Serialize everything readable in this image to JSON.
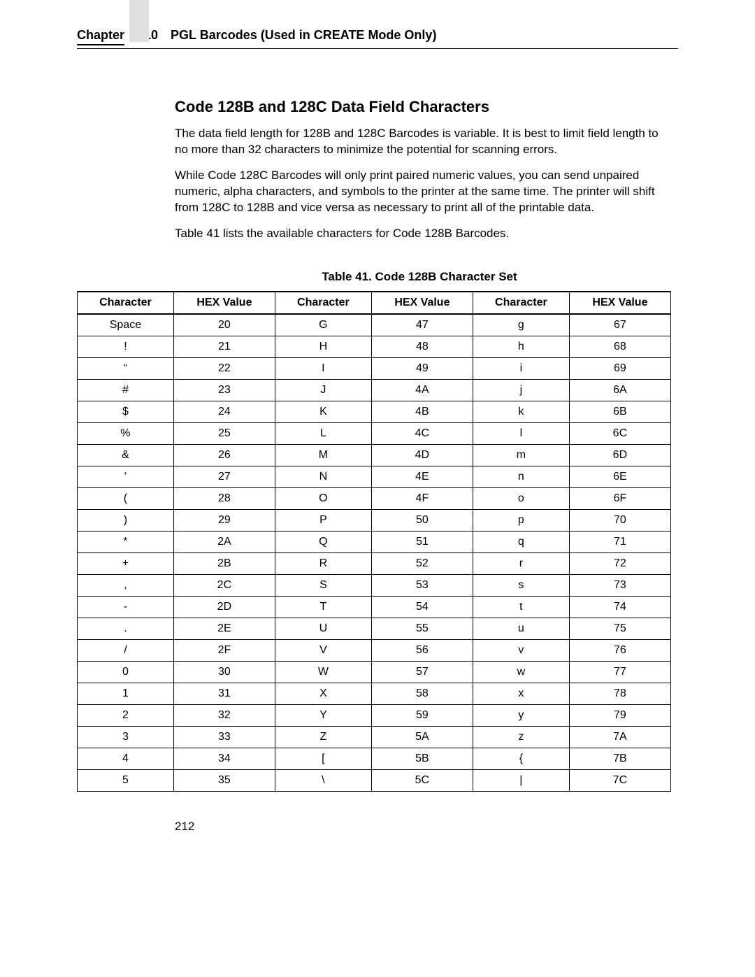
{
  "header": {
    "chapter_label": "Chapter",
    "chapter_number": "10",
    "title": "PGL Barcodes (Used in CREATE Mode Only)"
  },
  "section_title": "Code 128B and 128C Data Field Characters",
  "paragraphs": [
    "The data field length for 128B and 128C Barcodes is variable. It is best to limit field length to no more than 32 characters to minimize the potential for scanning errors.",
    "While Code 128C Barcodes will only print paired numeric values, you can send unpaired numeric, alpha characters, and symbols to the printer at the same time. The printer will shift from 128C to 128B and vice versa as necessary to print all of the printable data.",
    "Table 41 lists the available characters for Code 128B Barcodes."
  ],
  "table_caption": "Table 41. Code 128B Character Set",
  "columns": [
    "Character",
    "HEX Value",
    "Character",
    "HEX Value",
    "Character",
    "HEX Value"
  ],
  "rows": [
    [
      "Space",
      "20",
      "G",
      "47",
      "g",
      "67"
    ],
    [
      "!",
      "21",
      "H",
      "48",
      "h",
      "68"
    ],
    [
      "“",
      "22",
      "I",
      "49",
      "i",
      "69"
    ],
    [
      "#",
      "23",
      "J",
      "4A",
      "j",
      "6A"
    ],
    [
      "$",
      "24",
      "K",
      "4B",
      "k",
      "6B"
    ],
    [
      "%",
      "25",
      "L",
      "4C",
      "l",
      "6C"
    ],
    [
      "&",
      "26",
      "M",
      "4D",
      "m",
      "6D"
    ],
    [
      "‘",
      "27",
      "N",
      "4E",
      "n",
      "6E"
    ],
    [
      "(",
      "28",
      "O",
      "4F",
      "o",
      "6F"
    ],
    [
      ")",
      "29",
      "P",
      "50",
      "p",
      "70"
    ],
    [
      "*",
      "2A",
      "Q",
      "51",
      "q",
      "71"
    ],
    [
      "+",
      "2B",
      "R",
      "52",
      "r",
      "72"
    ],
    [
      ",",
      "2C",
      "S",
      "53",
      "s",
      "73"
    ],
    [
      "-",
      "2D",
      "T",
      "54",
      "t",
      "74"
    ],
    [
      ".",
      "2E",
      "U",
      "55",
      "u",
      "75"
    ],
    [
      "/",
      "2F",
      "V",
      "56",
      "v",
      "76"
    ],
    [
      "0",
      "30",
      "W",
      "57",
      "w",
      "77"
    ],
    [
      "1",
      "31",
      "X",
      "58",
      "x",
      "78"
    ],
    [
      "2",
      "32",
      "Y",
      "59",
      "y",
      "79"
    ],
    [
      "3",
      "33",
      "Z",
      "5A",
      "z",
      "7A"
    ],
    [
      "4",
      "34",
      "[",
      "5B",
      "{",
      "7B"
    ],
    [
      "5",
      "35",
      "\\",
      "5C",
      "|",
      "7C"
    ]
  ],
  "page_number": "212"
}
